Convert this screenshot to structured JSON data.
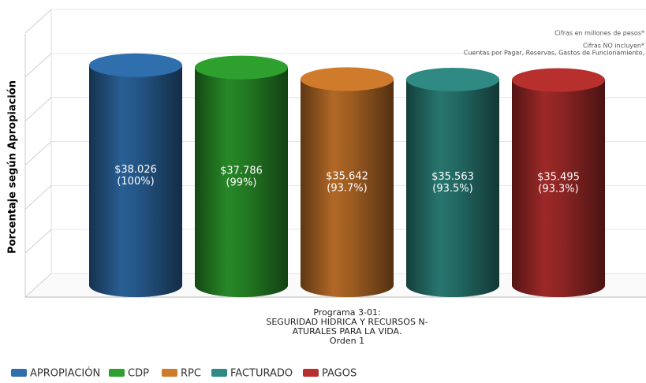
{
  "chart_data": {
    "type": "cylinder",
    "y_label": "Porcentaje según Apropiación",
    "notes": [
      "Cifras en millones de pesos*",
      "Cifras NO incluyen*",
      "Cuentas por Pagar, Reservas, Gastos de Funcionamiento,"
    ],
    "category_lines": [
      "Programa 3-01:",
      "SEGURIDAD HIDRICA Y RECURSOS N-",
      "ATURALES PARA LA VIDA.",
      "Orden 1"
    ],
    "ylim": [
      0,
      125
    ],
    "yticks": [
      0,
      20,
      40,
      60,
      80,
      100,
      120
    ],
    "grid": true,
    "series": [
      {
        "name": "APROPIACIÓN",
        "color": "#2f6fae",
        "values": [
          100
        ],
        "value_labels": [
          "(100%)"
        ],
        "amounts": [
          38026
        ],
        "amount_labels": [
          "$38.026"
        ]
      },
      {
        "name": "CDP",
        "color": "#2ea02e",
        "values": [
          99
        ],
        "value_labels": [
          "(99%)"
        ],
        "amounts": [
          37786
        ],
        "amount_labels": [
          "$37.786"
        ]
      },
      {
        "name": "RPC",
        "color": "#d07a2c",
        "values": [
          93.7
        ],
        "value_labels": [
          "(93.7%)"
        ],
        "amounts": [
          35642
        ],
        "amount_labels": [
          "$35.642"
        ]
      },
      {
        "name": "FACTURADO",
        "color": "#2e8a82",
        "values": [
          93.5
        ],
        "value_labels": [
          "(93.5%)"
        ],
        "amounts": [
          35563
        ],
        "amount_labels": [
          "$35.563"
        ]
      },
      {
        "name": "PAGOS",
        "color": "#b8302e",
        "values": [
          93.3
        ],
        "value_labels": [
          "(93.3%)"
        ],
        "amounts": [
          35495
        ],
        "amount_labels": [
          "$35.495"
        ]
      }
    ]
  }
}
